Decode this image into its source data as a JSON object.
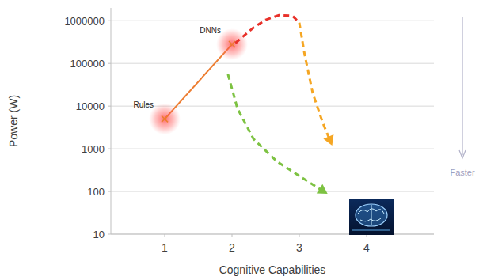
{
  "chart_data": {
    "type": "line",
    "x_label": "Cognitive Capabilities",
    "y_label": "Power (W)",
    "log": "y",
    "grid": true,
    "xlim": [
      0.2,
      5
    ],
    "xticks": [
      1,
      2,
      3,
      4
    ],
    "ylim": [
      10,
      2000000
    ],
    "yticks": [
      10,
      100,
      1000,
      10000,
      100000,
      1000000
    ],
    "annotations": [
      {
        "text": "Faster"
      }
    ],
    "series": [
      {
        "type": "line",
        "color": "#ed7d31",
        "marker": "x",
        "line_style": "solid",
        "x": [
          1,
          2
        ],
        "values": [
          5000,
          280000
        ],
        "point_labels": [
          "Rules",
          "DNNs"
        ]
      },
      {
        "type": "line",
        "color": "#e8312a",
        "marker": "none",
        "line_style": "dashed",
        "x": [
          2.05,
          2.3,
          2.5,
          2.7,
          2.9,
          3.0
        ],
        "values": [
          300000,
          650000,
          1050000,
          1350000,
          1300000,
          900000
        ]
      },
      {
        "type": "line",
        "color": "#f5a623",
        "marker": "arrow",
        "line_style": "dashed",
        "x": [
          3.0,
          3.08,
          3.2,
          3.35,
          3.47
        ],
        "values": [
          900000,
          160000,
          20000,
          4000,
          1400
        ]
      },
      {
        "type": "line",
        "color": "#7dc242",
        "marker": "arrow",
        "line_style": "dashed",
        "x": [
          1.94,
          2.08,
          2.32,
          2.67,
          3.02,
          3.38
        ],
        "values": [
          56000,
          8900,
          1700,
          500,
          220,
          96
        ]
      }
    ]
  }
}
